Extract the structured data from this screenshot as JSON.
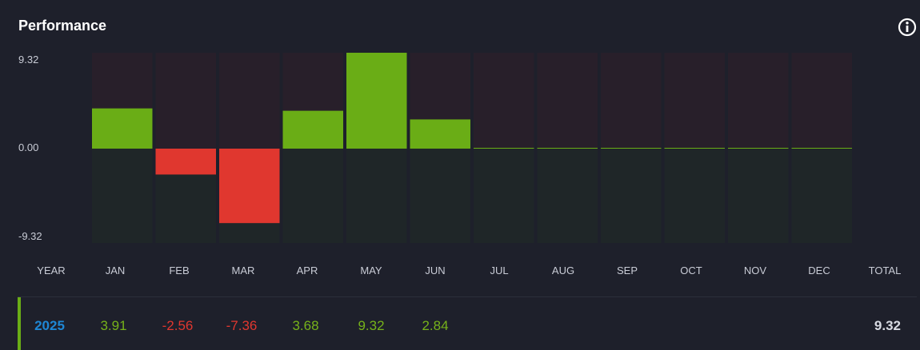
{
  "header": {
    "title": "Performance",
    "info_icon": "info-circle-icon"
  },
  "chart_data": {
    "type": "bar",
    "categories": [
      "JAN",
      "FEB",
      "MAR",
      "APR",
      "MAY",
      "JUN",
      "JUL",
      "AUG",
      "SEP",
      "OCT",
      "NOV",
      "DEC"
    ],
    "values": [
      3.91,
      -2.56,
      -7.36,
      3.68,
      9.32,
      2.84,
      0,
      0,
      0,
      0,
      0,
      0
    ],
    "ylim": [
      -9.32,
      9.32
    ],
    "ytick_labels": [
      "9.32",
      "0.00",
      "-9.32"
    ],
    "colors": {
      "positive": "#6aad16",
      "negative": "#e0372f",
      "bg_top": "#281f2a",
      "bg_bottom": "#1f2628"
    }
  },
  "table": {
    "header": {
      "year": "YEAR",
      "months": [
        "JAN",
        "FEB",
        "MAR",
        "APR",
        "MAY",
        "JUN",
        "JUL",
        "AUG",
        "SEP",
        "OCT",
        "NOV",
        "DEC"
      ],
      "total": "TOTAL"
    },
    "row": {
      "year": "2025",
      "values": [
        "3.91",
        "-2.56",
        "-7.36",
        "3.68",
        "9.32",
        "2.84",
        "",
        "",
        "",
        "",
        "",
        ""
      ],
      "total": "9.32"
    }
  }
}
